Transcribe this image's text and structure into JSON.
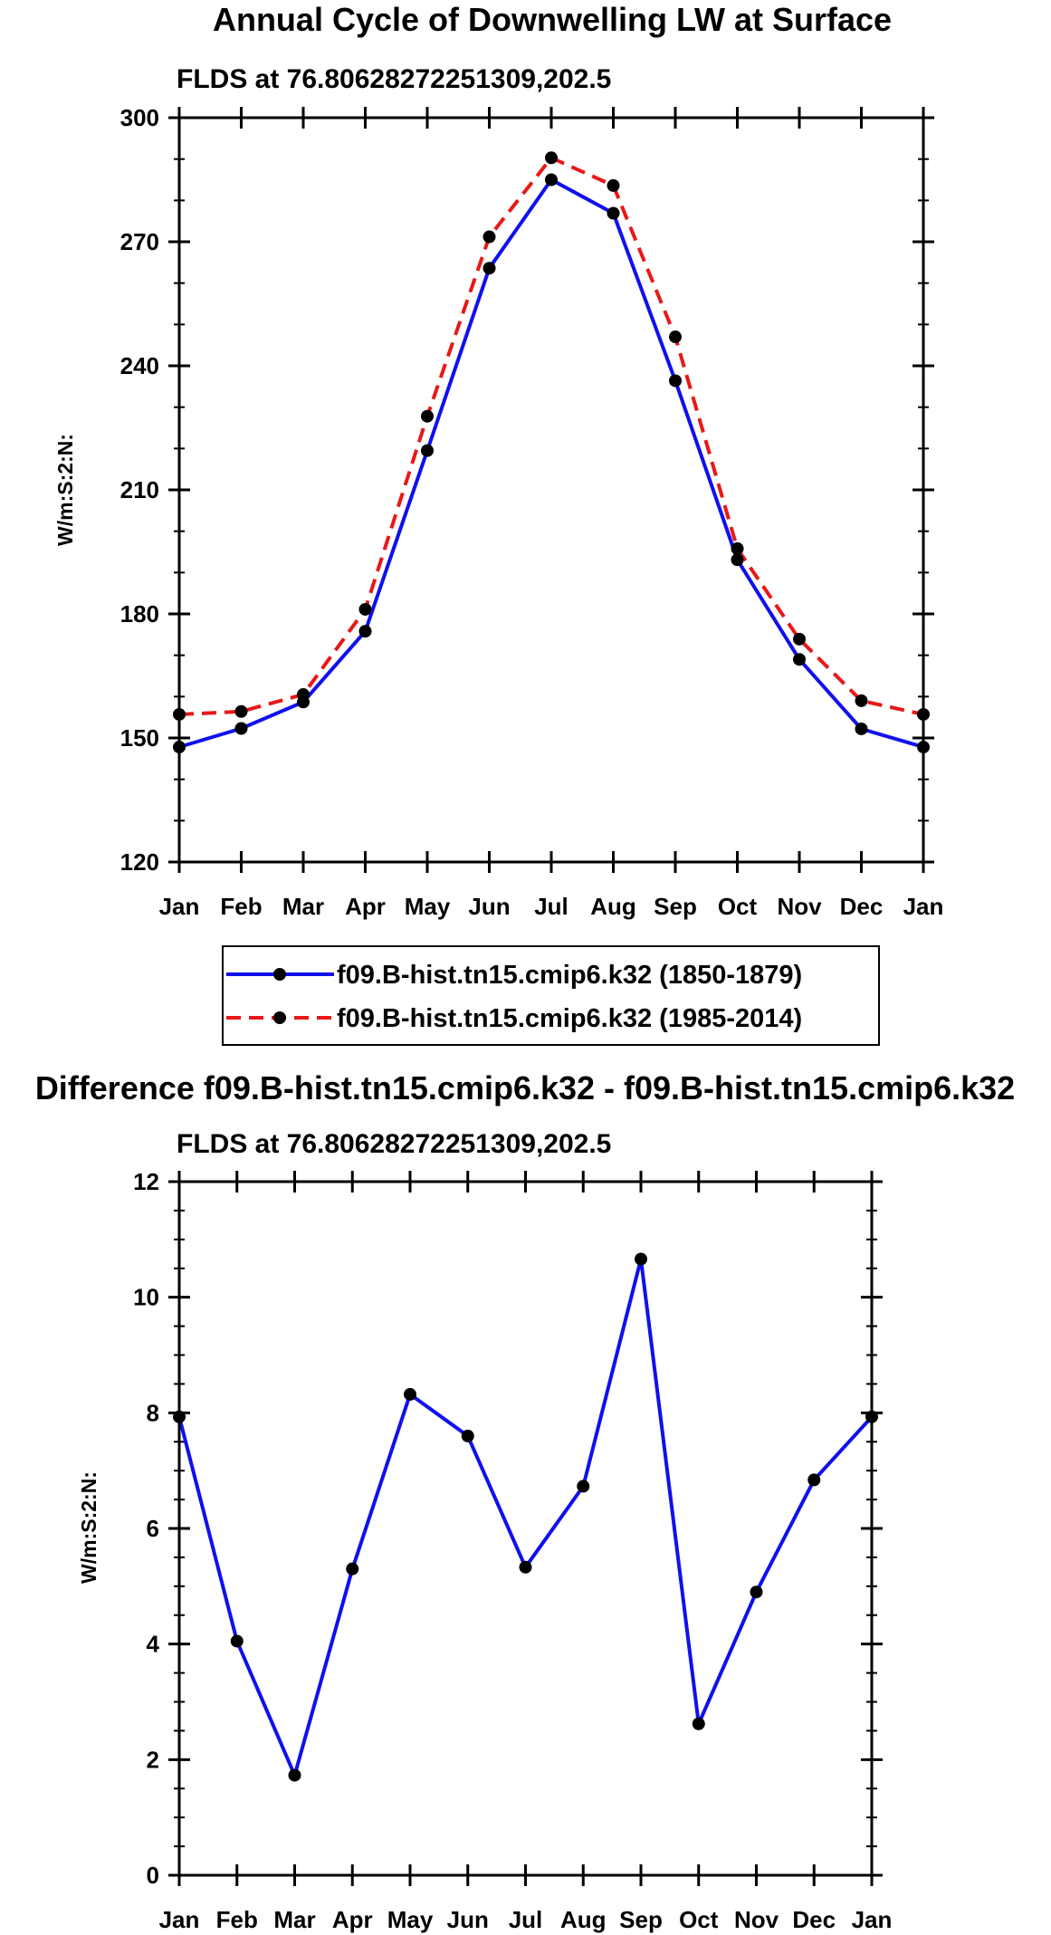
{
  "chart_data": [
    {
      "type": "line",
      "title": "Annual Cycle of Downwelling LW at Surface",
      "subtitle": "FLDS at 76.80628272251309,202.5",
      "xlabel": "",
      "ylabel": "W/m:S:2:N:",
      "categories": [
        "Jan",
        "Feb",
        "Mar",
        "Apr",
        "May",
        "Jun",
        "Jul",
        "Aug",
        "Sep",
        "Oct",
        "Nov",
        "Dec",
        "Jan"
      ],
      "ylim": [
        120,
        300
      ],
      "yticks": [
        "120",
        "150",
        "180",
        "210",
        "240",
        "270",
        "300"
      ],
      "legend_position": "bottom",
      "series": [
        {
          "name": "f09.B-hist.tn15.cmip6.k32 (1850-1879)",
          "color": "#1010ee",
          "style": "solid",
          "values": [
            147.8,
            152.3,
            158.7,
            175.8,
            219.5,
            263.6,
            285.0,
            276.9,
            236.4,
            193.1,
            169.0,
            152.2,
            147.8
          ]
        },
        {
          "name": "f09.B-hist.tn15.cmip6.k32 (1985-2014)",
          "color": "#e81818",
          "style": "dashed",
          "values": [
            155.7,
            156.4,
            160.5,
            181.1,
            227.8,
            271.2,
            290.3,
            283.6,
            247.0,
            195.8,
            173.9,
            159.0,
            155.7
          ]
        }
      ]
    },
    {
      "type": "line",
      "title": "Difference f09.B-hist.tn15.cmip6.k32 - f09.B-hist.tn15.cmip6.k32",
      "subtitle": "FLDS at 76.80628272251309,202.5",
      "xlabel": "",
      "ylabel": "W/m:S:2:N:",
      "categories": [
        "Jan",
        "Feb",
        "Mar",
        "Apr",
        "May",
        "Jun",
        "Jul",
        "Aug",
        "Sep",
        "Oct",
        "Nov",
        "Dec",
        "Jan"
      ],
      "ylim": [
        0,
        12
      ],
      "yticks": [
        "0",
        "2",
        "4",
        "6",
        "8",
        "10",
        "12"
      ],
      "series": [
        {
          "name": "difference",
          "color": "#1010ee",
          "style": "solid",
          "values": [
            7.93,
            4.05,
            1.73,
            5.3,
            8.32,
            7.6,
            5.33,
            6.73,
            10.66,
            2.62,
            4.9,
            6.84,
            7.93
          ]
        }
      ]
    }
  ]
}
